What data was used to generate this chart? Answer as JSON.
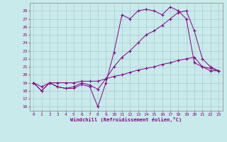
{
  "xlabel": "Windchill (Refroidissement éolien,°C)",
  "bg_color": "#c8eaea",
  "line_color": "#880088",
  "grid_color": "#aacccc",
  "xlim": [
    -0.5,
    23.5
  ],
  "ylim": [
    15.5,
    29.0
  ],
  "yticks": [
    16,
    17,
    18,
    19,
    20,
    21,
    22,
    23,
    24,
    25,
    26,
    27,
    28
  ],
  "xticks": [
    0,
    1,
    2,
    3,
    4,
    5,
    6,
    7,
    8,
    9,
    10,
    11,
    12,
    13,
    14,
    15,
    16,
    17,
    18,
    19,
    20,
    21,
    22,
    23
  ],
  "line1_x": [
    0,
    1,
    2,
    3,
    4,
    5,
    6,
    7,
    8,
    9,
    10,
    11,
    12,
    13,
    14,
    15,
    16,
    17,
    18,
    19,
    20,
    21,
    22,
    23
  ],
  "line1_y": [
    19.0,
    18.0,
    19.0,
    18.5,
    18.3,
    18.3,
    18.8,
    18.5,
    16.0,
    19.0,
    22.8,
    27.5,
    27.0,
    28.0,
    28.2,
    28.0,
    27.5,
    28.5,
    28.0,
    27.0,
    21.5,
    21.0,
    20.5,
    20.5
  ],
  "line2_x": [
    0,
    1,
    2,
    3,
    4,
    5,
    6,
    7,
    8,
    9,
    10,
    11,
    12,
    13,
    14,
    15,
    16,
    17,
    18,
    19,
    20,
    21,
    22,
    23
  ],
  "line2_y": [
    19.0,
    18.0,
    19.0,
    18.5,
    18.3,
    18.5,
    19.0,
    18.7,
    18.2,
    19.5,
    21.0,
    22.2,
    23.0,
    24.0,
    25.0,
    25.5,
    26.2,
    27.0,
    27.8,
    28.0,
    25.5,
    22.0,
    21.0,
    20.5
  ],
  "line3_x": [
    0,
    1,
    2,
    3,
    4,
    5,
    6,
    7,
    8,
    9,
    10,
    11,
    12,
    13,
    14,
    15,
    16,
    17,
    18,
    19,
    20,
    21,
    22,
    23
  ],
  "line3_y": [
    19.0,
    18.5,
    19.0,
    19.0,
    19.0,
    19.0,
    19.2,
    19.2,
    19.2,
    19.5,
    19.8,
    20.0,
    20.3,
    20.6,
    20.8,
    21.0,
    21.3,
    21.5,
    21.8,
    22.0,
    22.2,
    21.0,
    20.8,
    20.5
  ]
}
